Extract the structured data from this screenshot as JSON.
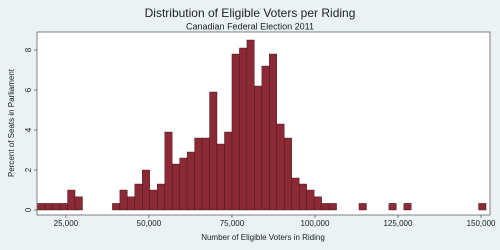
{
  "chart_data": {
    "type": "histogram",
    "title": "Distribution of Eligible Voters per Riding",
    "subtitle": "Canadian Federal Election 2011",
    "x_label": "Number of Eligible Voters in Riding",
    "y_label": "Percent of Seats in Parliament",
    "bins": [
      16500,
      18750,
      21000,
      23250,
      25500,
      27750,
      30000,
      32250,
      34500,
      36750,
      39000,
      41250,
      43500,
      45750,
      48000,
      50250,
      52500,
      54750,
      57000,
      59250,
      61500,
      63750,
      66000,
      68250,
      70500,
      72750,
      75000,
      77250,
      79500,
      81750,
      84000,
      86250,
      88500,
      90750,
      93000,
      95250,
      97500,
      99750,
      102000,
      104250,
      106500,
      108750,
      111000,
      113250,
      115500,
      117750,
      120000,
      122250,
      124500,
      126750,
      129000,
      131250,
      133500,
      135750,
      138000,
      140250,
      142500,
      144750,
      147000,
      149250,
      151500
    ],
    "values": [
      0.33,
      0.33,
      0.33,
      0.33,
      1.0,
      0.66,
      0,
      0,
      0,
      0,
      0.33,
      1.0,
      0.66,
      1.3,
      2.0,
      1.0,
      1.3,
      3.9,
      2.3,
      2.6,
      2.9,
      3.6,
      3.6,
      5.9,
      3.3,
      3.9,
      7.8,
      8.1,
      8.5,
      6.2,
      7.2,
      7.8,
      4.3,
      3.6,
      1.6,
      1.3,
      1.0,
      0.66,
      0.33,
      0.33,
      0,
      0,
      0,
      0.33,
      0,
      0,
      0,
      0.33,
      0,
      0.33,
      0,
      0,
      0,
      0,
      0,
      0,
      0,
      0,
      0,
      0.33
    ],
    "color": "#8b2a35",
    "xlim": [
      16300,
      152700
    ],
    "ylim": [
      -0.25,
      8.9
    ],
    "xticks": [
      {
        "value": 25000,
        "label": "25,000"
      },
      {
        "value": 50000,
        "label": "50,000"
      },
      {
        "value": 75000,
        "label": "75,000"
      },
      {
        "value": 100000,
        "label": "100,000"
      },
      {
        "value": 125000,
        "label": "125,000"
      },
      {
        "value": 150000,
        "label": "150,000"
      }
    ],
    "yticks": [
      0,
      2,
      4,
      6,
      8
    ]
  }
}
